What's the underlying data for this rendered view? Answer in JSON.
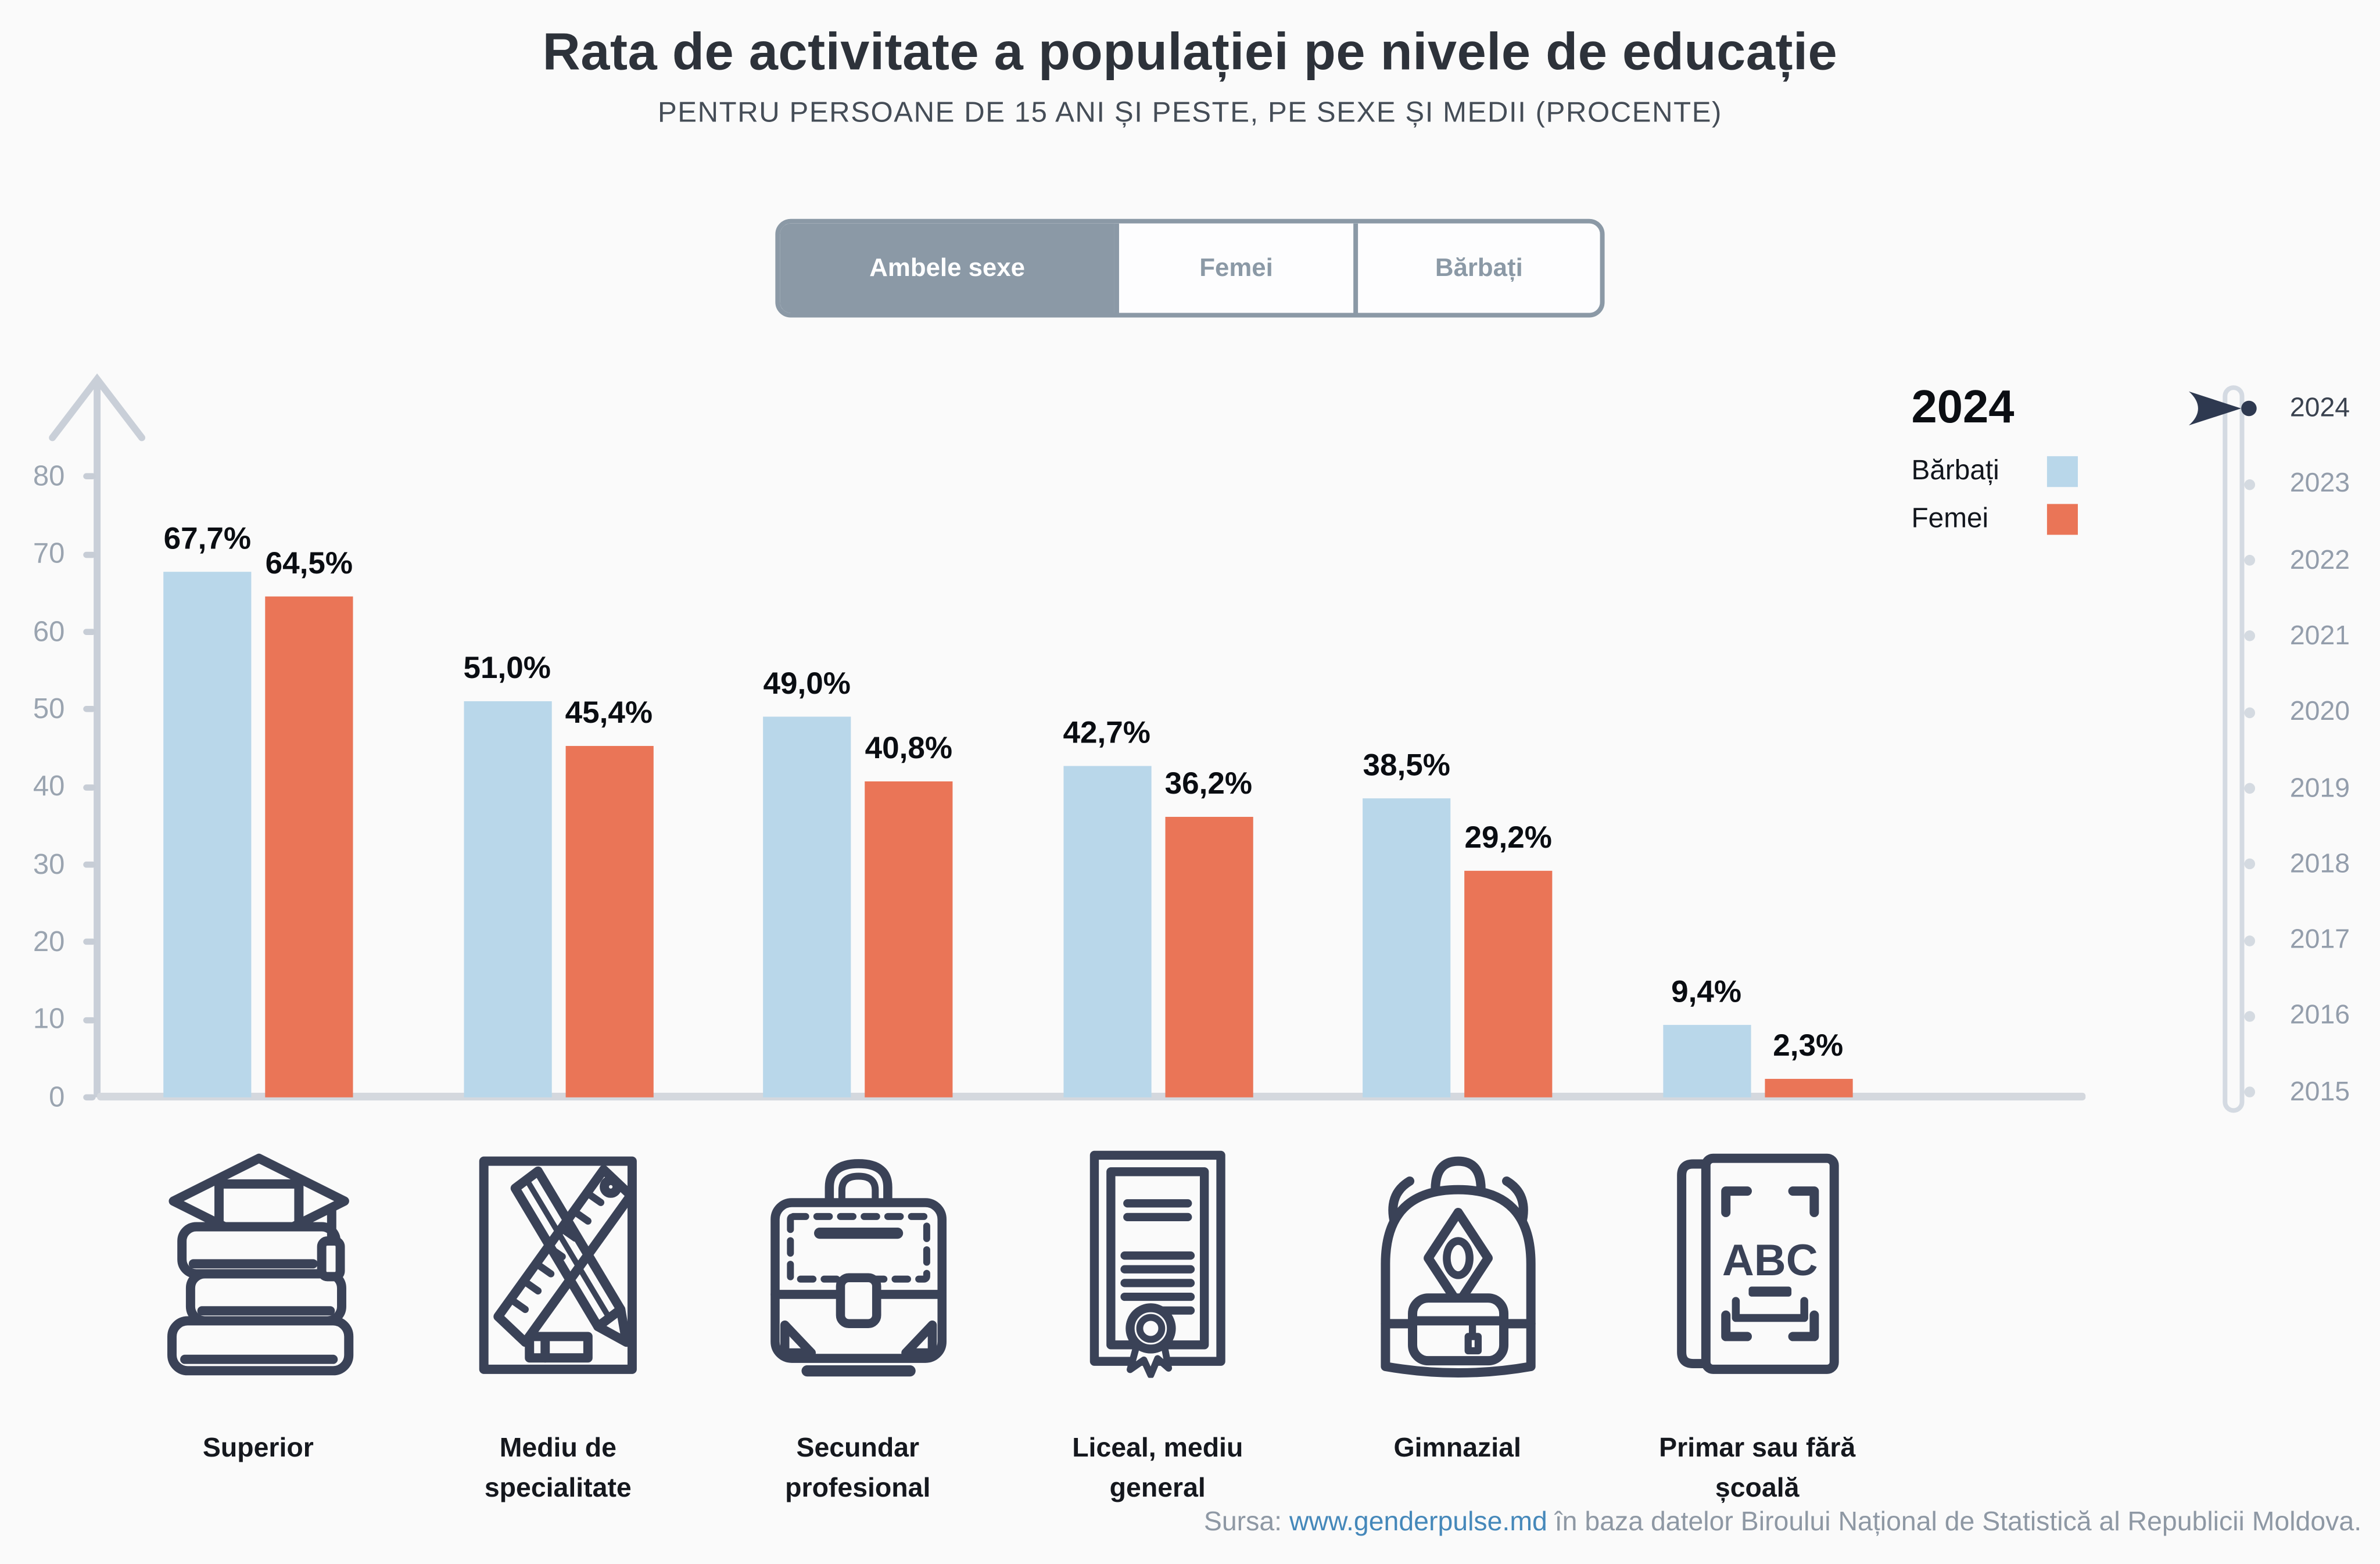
{
  "header": {
    "title": "Rata de activitate a populației pe nivele de educație",
    "subtitle": "PENTRU PERSOANE DE 15 ANI ȘI PESTE, PE SEXE ȘI MEDII (PROCENTE)"
  },
  "tabs": {
    "items": [
      {
        "label": "Ambele sexe",
        "selected": true
      },
      {
        "label": "Femei",
        "selected": false
      },
      {
        "label": "Bărbați",
        "selected": false
      }
    ]
  },
  "legend": {
    "year": "2024",
    "items": [
      {
        "label": "Bărbați",
        "color": "#B9D7EA"
      },
      {
        "label": "Femei",
        "color": "#EA7557"
      }
    ]
  },
  "timeline": {
    "selected_year": "2024",
    "years": [
      "2024",
      "2023",
      "2022",
      "2021",
      "2020",
      "2019",
      "2018",
      "2017",
      "2016",
      "2015"
    ]
  },
  "chart_data": {
    "type": "bar",
    "title": "Rata de activitate a populației pe nivele de educație",
    "subtitle": "Pentru persoane de 15 ani și peste, pe sexe și medii (procente)",
    "year": "2024",
    "unit": "%",
    "categories": [
      "Superior",
      "Mediu de specialitate",
      "Secundar profesional",
      "Liceal, mediu general",
      "Gimnazial",
      "Primar sau fără școală"
    ],
    "series": [
      {
        "name": "Bărbați",
        "color": "#B9D7EA",
        "values": [
          67.7,
          51.0,
          49.0,
          42.7,
          38.5,
          9.4
        ],
        "labels": [
          "67,7%",
          "51,0%",
          "49,0%",
          "42,7%",
          "38,5%",
          "9,4%"
        ]
      },
      {
        "name": "Femei",
        "color": "#EA7557",
        "values": [
          64.5,
          45.4,
          40.8,
          36.2,
          29.2,
          2.3
        ],
        "labels": [
          "64,5%",
          "45,4%",
          "40,8%",
          "36,2%",
          "29,2%",
          "2,3%"
        ]
      }
    ],
    "yticks": [
      0,
      10,
      20,
      30,
      40,
      50,
      60,
      70,
      80
    ],
    "ylim": [
      0,
      85
    ],
    "grid": false,
    "legend_position": "top-right"
  },
  "icons": [
    "books-graduation-cap-icon",
    "pencil-ruler-icon",
    "briefcase-icon",
    "diploma-icon",
    "backpack-icon",
    "abc-book-icon"
  ],
  "footer": {
    "prefix": "Sursa:",
    "link": "www.genderpulse.md",
    "suffix": "în baza datelor Biroului Național de Statistică al Republicii Moldova."
  }
}
